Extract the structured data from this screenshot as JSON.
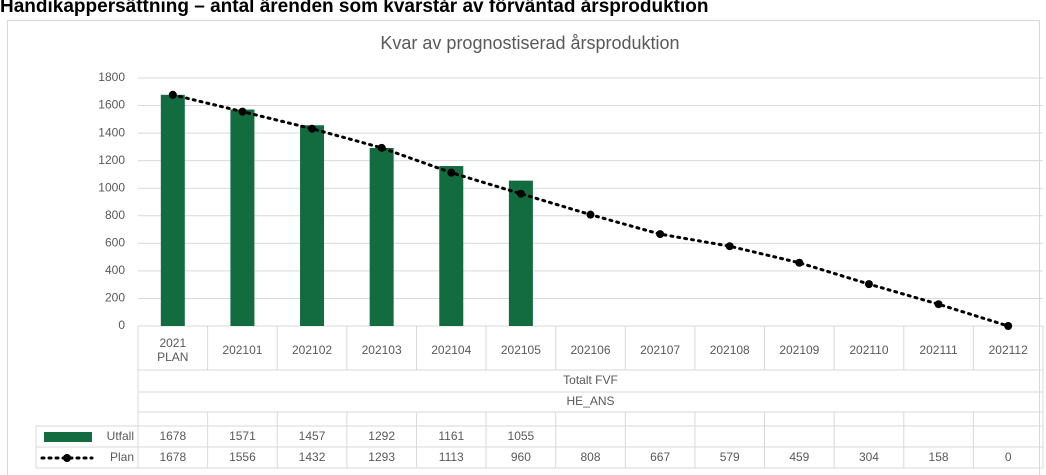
{
  "page_title": "Handikappersättning – antal ärenden som kvarstår av förväntad årsproduktion",
  "chart_data": {
    "type": "bar_line",
    "title": "Kvar av prognostiserad årsproduktion",
    "categories": [
      "2021 PLAN",
      "202101",
      "202102",
      "202103",
      "202104",
      "202105",
      "202106",
      "202107",
      "202108",
      "202109",
      "202110",
      "202111",
      "202112"
    ],
    "category_groups": [
      "Totalt FVF",
      "HE_ANS"
    ],
    "series": [
      {
        "name": "Utfall",
        "type": "bar",
        "color": "#136b40",
        "values": [
          1678,
          1571,
          1457,
          1292,
          1161,
          1055,
          null,
          null,
          null,
          null,
          null,
          null,
          null
        ]
      },
      {
        "name": "Plan",
        "type": "line",
        "color": "#000000",
        "values": [
          1678,
          1556,
          1432,
          1293,
          1113,
          960,
          808,
          667,
          579,
          459,
          304,
          158,
          0
        ]
      }
    ],
    "ylim": [
      0,
      1800
    ],
    "yticks": [
      0,
      200,
      400,
      600,
      800,
      1000,
      1200,
      1400,
      1600,
      1800
    ],
    "grid": true
  }
}
